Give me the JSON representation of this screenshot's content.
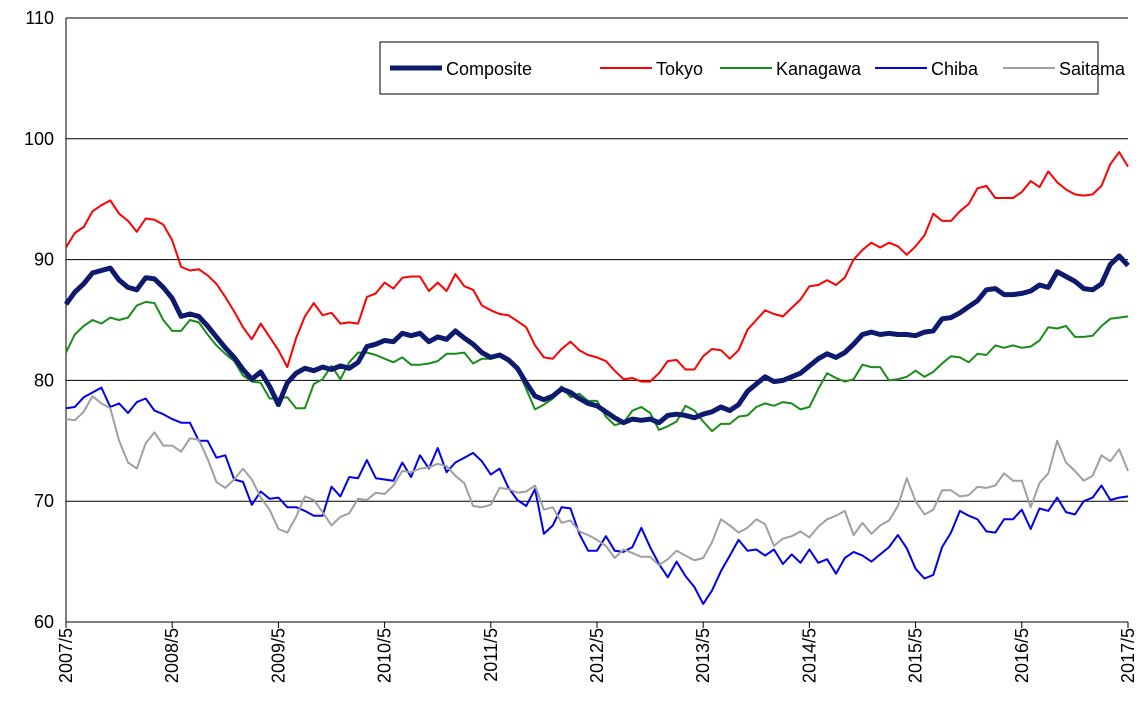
{
  "chart_data": {
    "type": "line",
    "categories": [
      "2007/5",
      null,
      null,
      null,
      null,
      null,
      null,
      null,
      null,
      null,
      null,
      null,
      "2008/5",
      null,
      null,
      null,
      null,
      null,
      null,
      null,
      null,
      null,
      null,
      null,
      "2009/5",
      null,
      null,
      null,
      null,
      null,
      null,
      null,
      null,
      null,
      null,
      null,
      "2010/5",
      null,
      null,
      null,
      null,
      null,
      null,
      null,
      null,
      null,
      null,
      null,
      "2011/5",
      null,
      null,
      null,
      null,
      null,
      null,
      null,
      null,
      null,
      null,
      null,
      "2012/5",
      null,
      null,
      null,
      null,
      null,
      null,
      null,
      null,
      null,
      null,
      null,
      "2013/5",
      null,
      null,
      null,
      null,
      null,
      null,
      null,
      null,
      null,
      null,
      null,
      "2014/5",
      null,
      null,
      null,
      null,
      null,
      null,
      null,
      null,
      null,
      null,
      null,
      "2015/5",
      null,
      null,
      null,
      null,
      null,
      null,
      null,
      null,
      null,
      null,
      null,
      "2016/5",
      null,
      null,
      null,
      null,
      null,
      null,
      null,
      null,
      null,
      null,
      null,
      "2017/5"
    ],
    "series": [
      {
        "name": "Composite",
        "color": "#0d1a6e",
        "values": [
          86.3,
          87.3,
          88.0,
          88.9,
          89.1,
          89.3,
          88.3,
          87.7,
          87.5,
          88.5,
          88.4,
          87.7,
          86.8,
          85.3,
          85.5,
          85.3,
          84.5,
          83.6,
          82.7,
          81.9,
          80.9,
          80.1,
          80.7,
          79.5,
          78.0,
          79.8,
          80.6,
          81.0,
          80.8,
          81.1,
          80.9,
          81.2,
          81.0,
          81.5,
          82.8,
          83.0,
          83.3,
          83.2,
          83.9,
          83.7,
          83.9,
          83.2,
          83.6,
          83.4,
          84.1,
          83.5,
          83.0,
          82.3,
          81.9,
          82.1,
          81.7,
          81.0,
          79.8,
          78.7,
          78.4,
          78.7,
          79.3,
          79.0,
          78.5,
          78.1,
          77.9,
          77.4,
          76.9,
          76.5,
          76.8,
          76.7,
          76.8,
          76.5,
          77.1,
          77.2,
          77.1,
          76.9,
          77.2,
          77.4,
          77.8,
          77.5,
          78.0,
          79.1,
          79.7,
          80.3,
          79.9,
          80.0,
          80.3,
          80.6,
          81.2,
          81.8,
          82.2,
          81.9,
          82.3,
          83.0,
          83.8,
          84.0,
          83.8,
          83.9,
          83.8,
          83.8,
          83.7,
          84.0,
          84.1,
          85.1,
          85.2,
          85.6,
          86.1,
          86.6,
          87.5,
          87.6,
          87.1,
          87.1,
          87.2,
          87.4,
          87.9,
          87.7,
          89.0,
          88.6,
          88.2,
          87.6,
          87.5,
          88.0,
          89.6,
          90.3,
          89.5
        ]
      },
      {
        "name": "Tokyo",
        "color": "#ff0000",
        "values": [
          91.0,
          92.2,
          92.7,
          94.0,
          94.5,
          94.9,
          93.8,
          93.2,
          92.3,
          93.4,
          93.3,
          92.9,
          91.6,
          89.4,
          89.1,
          89.2,
          88.7,
          88.0,
          86.9,
          85.7,
          84.4,
          83.4,
          84.7,
          83.6,
          82.5,
          81.1,
          83.5,
          85.3,
          86.4,
          85.4,
          85.6,
          84.7,
          84.8,
          84.7,
          86.9,
          87.2,
          88.1,
          87.6,
          88.5,
          88.6,
          88.6,
          87.4,
          88.1,
          87.4,
          88.8,
          87.8,
          87.5,
          86.2,
          85.8,
          85.5,
          85.4,
          84.9,
          84.4,
          82.9,
          81.9,
          81.8,
          82.6,
          83.2,
          82.5,
          82.1,
          81.9,
          81.6,
          80.8,
          80.1,
          80.2,
          79.9,
          79.9,
          80.6,
          81.6,
          81.7,
          80.9,
          80.9,
          82.0,
          82.6,
          82.5,
          81.8,
          82.5,
          84.2,
          85.0,
          85.8,
          85.5,
          85.3,
          86.0,
          86.7,
          87.8,
          87.9,
          88.3,
          87.9,
          88.5,
          90.0,
          90.8,
          91.4,
          91.0,
          91.4,
          91.1,
          90.4,
          91.1,
          92.0,
          93.8,
          93.2,
          93.2,
          94.0,
          94.6,
          95.9,
          96.1,
          95.1,
          95.1,
          95.1,
          95.6,
          96.5,
          96.0,
          97.3,
          96.4,
          95.8,
          95.4,
          95.3,
          95.4,
          96.1,
          97.9,
          98.9,
          97.7
        ]
      },
      {
        "name": "Kanagawa",
        "color": "#1a8c1a",
        "values": [
          82.3,
          83.8,
          84.5,
          85.0,
          84.7,
          85.2,
          85.0,
          85.2,
          86.2,
          86.5,
          86.4,
          85.0,
          84.1,
          84.1,
          85.0,
          84.8,
          83.8,
          82.9,
          82.2,
          81.6,
          80.4,
          79.9,
          79.8,
          78.5,
          78.5,
          78.6,
          77.7,
          77.7,
          79.7,
          80.1,
          81.2,
          80.1,
          81.5,
          82.3,
          82.3,
          82.1,
          81.8,
          81.5,
          81.9,
          81.3,
          81.3,
          81.4,
          81.6,
          82.2,
          82.2,
          82.3,
          81.4,
          81.8,
          81.8,
          82.0,
          81.6,
          80.9,
          79.3,
          77.6,
          78.0,
          78.5,
          79.5,
          78.6,
          78.9,
          78.3,
          78.3,
          77.0,
          76.3,
          76.5,
          77.5,
          77.8,
          77.3,
          75.9,
          76.2,
          76.6,
          77.9,
          77.5,
          76.6,
          75.8,
          76.4,
          76.4,
          77.0,
          77.1,
          77.8,
          78.1,
          77.9,
          78.2,
          78.1,
          77.6,
          77.8,
          79.3,
          80.6,
          80.2,
          79.9,
          80.1,
          81.3,
          81.1,
          81.1,
          80.0,
          80.1,
          80.3,
          80.8,
          80.3,
          80.7,
          81.4,
          82.0,
          81.9,
          81.5,
          82.2,
          82.1,
          82.9,
          82.7,
          82.9,
          82.7,
          82.8,
          83.3,
          84.4,
          84.3,
          84.5,
          83.6,
          83.6,
          83.7,
          84.5,
          85.1,
          85.2,
          85.3
        ]
      },
      {
        "name": "Chiba",
        "color": "#0000ee",
        "values": [
          77.7,
          77.8,
          78.6,
          79.0,
          79.4,
          77.8,
          78.1,
          77.3,
          78.2,
          78.5,
          77.5,
          77.2,
          76.8,
          76.5,
          76.5,
          75.0,
          75.0,
          73.6,
          73.8,
          71.8,
          71.6,
          69.7,
          70.8,
          70.2,
          70.3,
          69.5,
          69.5,
          69.2,
          68.8,
          68.8,
          71.2,
          70.4,
          72.0,
          71.9,
          73.4,
          71.9,
          71.8,
          71.7,
          73.2,
          72.0,
          73.8,
          72.7,
          74.4,
          72.4,
          73.2,
          73.6,
          74.0,
          73.3,
          72.2,
          72.7,
          71.1,
          70.1,
          69.6,
          71.0,
          67.3,
          68.0,
          69.5,
          69.4,
          67.3,
          65.9,
          65.9,
          67.1,
          65.9,
          65.8,
          66.2,
          67.8,
          66.2,
          64.8,
          63.7,
          65.0,
          63.8,
          62.9,
          61.5,
          62.6,
          64.2,
          65.5,
          66.8,
          65.9,
          66.0,
          65.5,
          66.0,
          64.8,
          65.6,
          64.9,
          66.0,
          64.9,
          65.2,
          64.0,
          65.3,
          65.8,
          65.5,
          65.0,
          65.6,
          66.2,
          67.2,
          66.1,
          64.4,
          63.6,
          63.9,
          66.2,
          67.4,
          69.2,
          68.8,
          68.5,
          67.5,
          67.4,
          68.5,
          68.5,
          69.3,
          67.7,
          69.4,
          69.2,
          70.3,
          69.1,
          68.9,
          70.0,
          70.3,
          71.3,
          70.1,
          70.3,
          70.4
        ]
      },
      {
        "name": "Saitama",
        "color": "#a0a0a0",
        "values": [
          76.8,
          76.7,
          77.4,
          78.7,
          78.1,
          77.7,
          75.0,
          73.2,
          72.7,
          74.8,
          75.7,
          74.6,
          74.6,
          74.1,
          75.2,
          75.1,
          73.5,
          71.6,
          71.1,
          71.8,
          72.7,
          71.8,
          70.3,
          69.3,
          67.7,
          67.4,
          68.7,
          70.4,
          70.1,
          69.1,
          68.0,
          68.7,
          69.0,
          70.2,
          70.1,
          70.7,
          70.6,
          71.3,
          72.5,
          72.4,
          72.7,
          72.8,
          73.1,
          72.9,
          72.1,
          71.5,
          69.6,
          69.5,
          69.7,
          71.1,
          71.0,
          70.7,
          70.8,
          71.3,
          69.3,
          69.5,
          68.2,
          68.4,
          67.5,
          67.2,
          66.8,
          66.3,
          65.3,
          66.0,
          65.7,
          65.4,
          65.4,
          64.7,
          65.2,
          65.9,
          65.5,
          65.1,
          65.3,
          66.6,
          68.5,
          68.0,
          67.4,
          67.8,
          68.5,
          68.1,
          66.3,
          66.9,
          67.1,
          67.5,
          67.0,
          67.9,
          68.5,
          68.8,
          69.2,
          67.2,
          68.2,
          67.3,
          68.0,
          68.4,
          69.6,
          71.9,
          70.0,
          68.9,
          69.3,
          70.9,
          70.9,
          70.4,
          70.5,
          71.2,
          71.1,
          71.3,
          72.3,
          71.7,
          71.7,
          69.5,
          71.5,
          72.3,
          75.0,
          73.2,
          72.5,
          71.7,
          72.1,
          73.8,
          73.3,
          74.3,
          72.5
        ]
      }
    ],
    "ylim": [
      60,
      110
    ],
    "yticks": [
      60,
      70,
      80,
      90,
      100,
      110
    ],
    "grid": true,
    "legend": "upper right"
  }
}
